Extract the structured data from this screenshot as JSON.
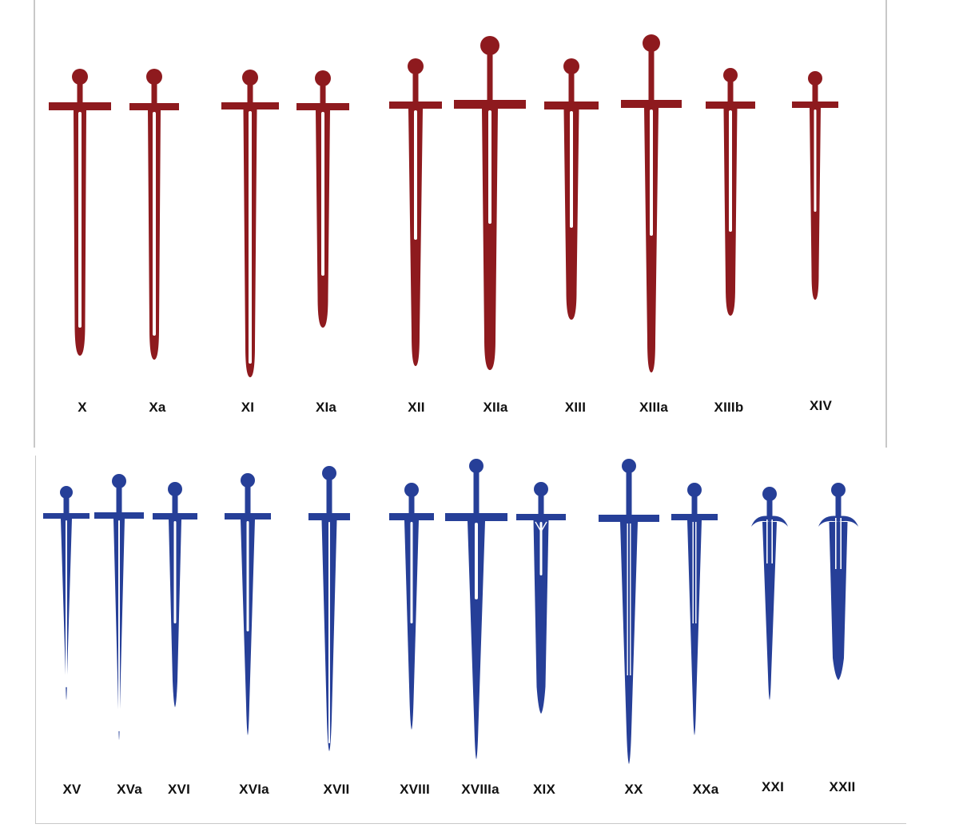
{
  "colors": {
    "red": "#8e1a1e",
    "blue": "#263f98",
    "fuller": "#ffffff"
  },
  "groups": [
    {
      "name": "red-group",
      "color": "red",
      "swords": [
        {
          "label": "X"
        },
        {
          "label": "Xa"
        },
        {
          "label": "XI"
        },
        {
          "label": "XIa"
        },
        {
          "label": "XII"
        },
        {
          "label": "XIIa"
        },
        {
          "label": "XIII"
        },
        {
          "label": "XIIIa"
        },
        {
          "label": "XIIIb"
        },
        {
          "label": "XIV"
        }
      ]
    },
    {
      "name": "blue-group",
      "color": "blue",
      "swords": [
        {
          "label": "XV"
        },
        {
          "label": "XVa"
        },
        {
          "label": "XVI"
        },
        {
          "label": "XVIa"
        },
        {
          "label": "XVII"
        },
        {
          "label": "XVIII"
        },
        {
          "label": "XVIIIa"
        },
        {
          "label": "XIX"
        },
        {
          "label": "XX"
        },
        {
          "label": "XXa"
        },
        {
          "label": "XXI"
        },
        {
          "label": "XXII"
        }
      ]
    }
  ]
}
